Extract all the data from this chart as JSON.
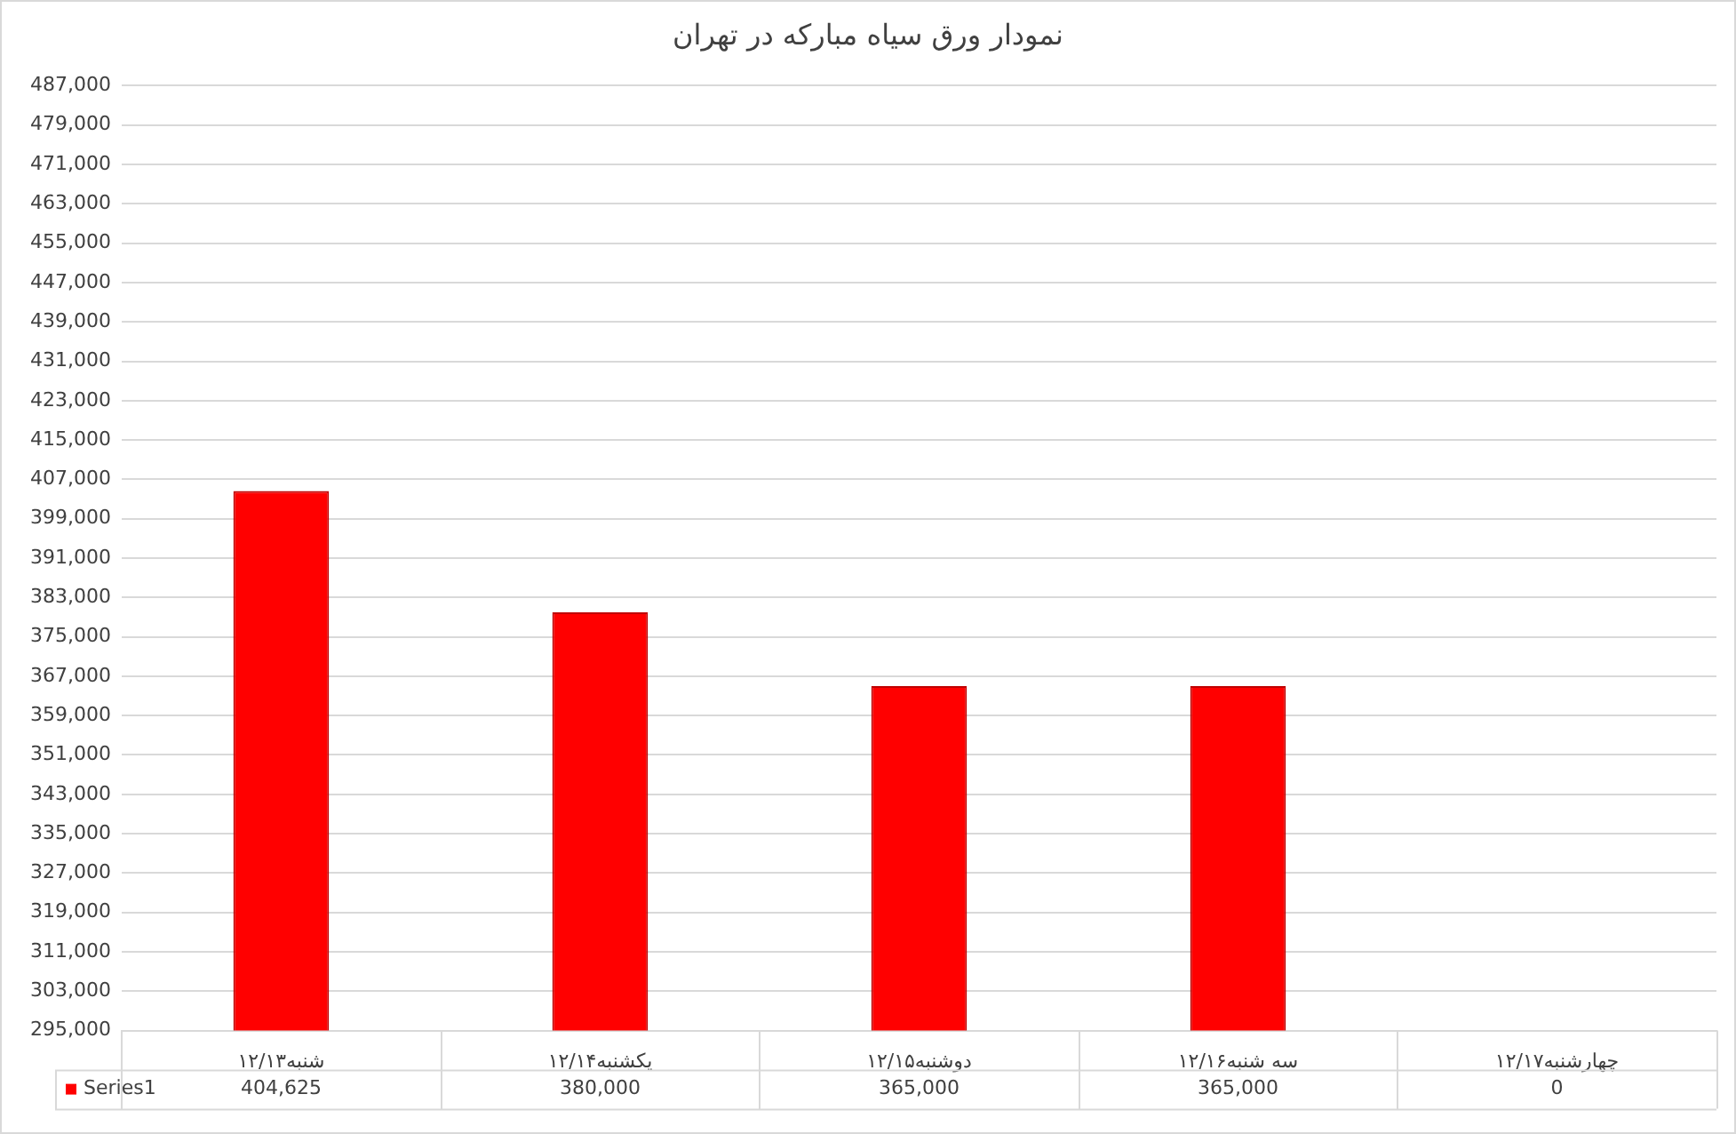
{
  "chart_data": {
    "type": "bar",
    "title": "نمودار ورق سیاه مبارکه در تهران",
    "categories": [
      "شنبه۱۲/۱۳",
      "یکشنبه۱۲/۱۴",
      "دوشنبه۱۲/۱۵",
      "سه شنبه۱۲/۱۶",
      "چهارشنبه۱۲/۱۷"
    ],
    "series": [
      {
        "name": "Series1",
        "color": "#ff0000",
        "values": [
          404625,
          380000,
          365000,
          365000,
          null
        ],
        "value_labels": [
          "404,625",
          "380,000",
          "365,000",
          "365,000",
          "0"
        ]
      }
    ],
    "ylim": [
      295000,
      487000
    ],
    "yticks": [
      {
        "value": 295000,
        "label": "295,000"
      },
      {
        "value": 303000,
        "label": "303,000"
      },
      {
        "value": 311000,
        "label": "311,000"
      },
      {
        "value": 319000,
        "label": "319,000"
      },
      {
        "value": 327000,
        "label": "327,000"
      },
      {
        "value": 335000,
        "label": "335,000"
      },
      {
        "value": 343000,
        "label": "343,000"
      },
      {
        "value": 351000,
        "label": "351,000"
      },
      {
        "value": 359000,
        "label": "359,000"
      },
      {
        "value": 367000,
        "label": "367,000"
      },
      {
        "value": 375000,
        "label": "375,000"
      },
      {
        "value": 383000,
        "label": "383,000"
      },
      {
        "value": 391000,
        "label": "391,000"
      },
      {
        "value": 399000,
        "label": "399,000"
      },
      {
        "value": 407000,
        "label": "407,000"
      },
      {
        "value": 415000,
        "label": "415,000"
      },
      {
        "value": 423000,
        "label": "423,000"
      },
      {
        "value": 431000,
        "label": "431,000"
      },
      {
        "value": 439000,
        "label": "439,000"
      },
      {
        "value": 447000,
        "label": "447,000"
      },
      {
        "value": 455000,
        "label": "455,000"
      },
      {
        "value": 463000,
        "label": "463,000"
      },
      {
        "value": 471000,
        "label": "471,000"
      },
      {
        "value": 479000,
        "label": "479,000"
      },
      {
        "value": 487000,
        "label": "487,000"
      }
    ],
    "grid": "y",
    "legend": "bottom"
  }
}
